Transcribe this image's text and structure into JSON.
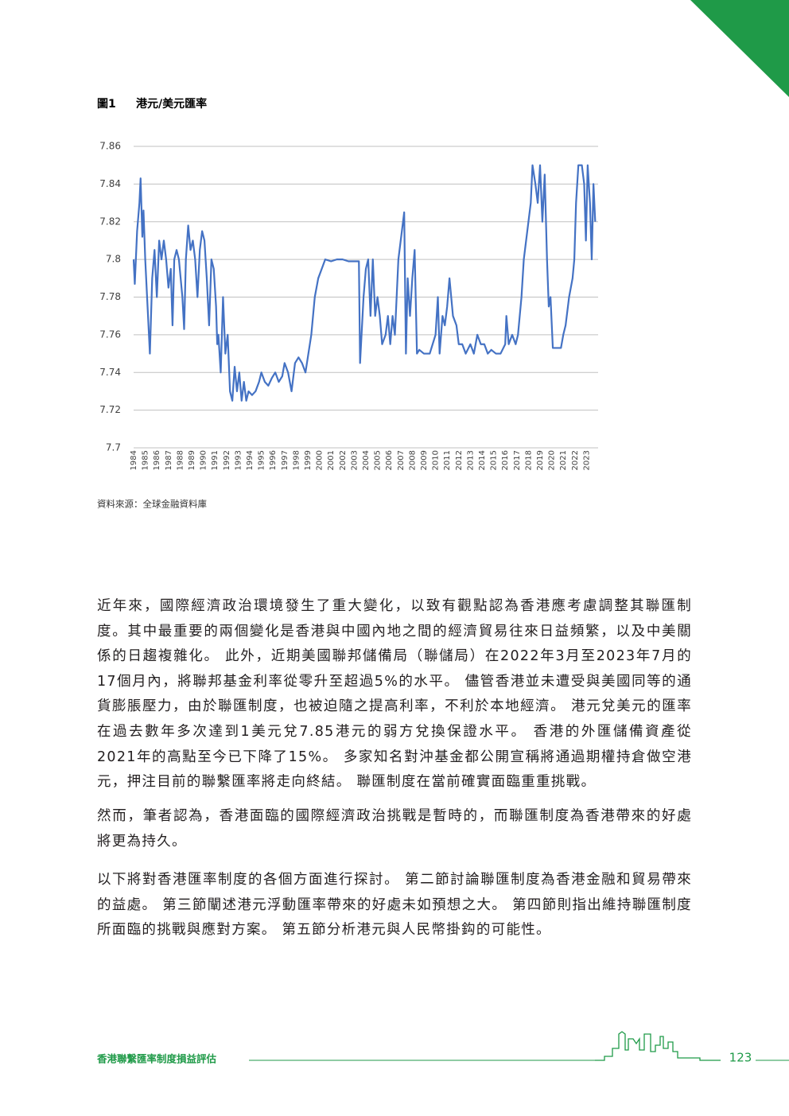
{
  "chart_data": {
    "type": "line",
    "figure_label": "圖1",
    "title": "港元/美元匯率",
    "source": "資料來源：全球金融資料庫",
    "color": "#4472c4",
    "grid": true,
    "x": [
      1984.0,
      1984.1,
      1984.3,
      1984.5,
      1984.6,
      1984.75,
      1984.85,
      1985.0,
      1985.2,
      1985.4,
      1985.6,
      1985.8,
      1986.0,
      1986.2,
      1986.4,
      1986.6,
      1986.8,
      1987.0,
      1987.2,
      1987.35,
      1987.5,
      1987.7,
      1987.9,
      1988.2,
      1988.35,
      1988.5,
      1988.7,
      1988.9,
      1989.1,
      1989.3,
      1989.5,
      1989.7,
      1989.9,
      1990.1,
      1990.3,
      1990.5,
      1990.7,
      1990.9,
      1991.1,
      1991.2,
      1991.3,
      1991.5,
      1991.7,
      1991.9,
      1992.1,
      1992.3,
      1992.5,
      1992.7,
      1992.9,
      1993.1,
      1993.3,
      1993.5,
      1993.7,
      1993.9,
      1994.2,
      1994.5,
      1994.8,
      1995.0,
      1995.3,
      1995.6,
      1995.9,
      1996.2,
      1996.5,
      1996.8,
      1997.0,
      1997.3,
      1997.6,
      1997.9,
      1998.2,
      1998.5,
      1998.8,
      1999.0,
      1999.3,
      1999.6,
      1999.9,
      2000.2,
      2000.5,
      2001.0,
      2001.5,
      2002.0,
      2002.5,
      2003.0,
      2003.4,
      2003.5,
      2003.8,
      2004.0,
      2004.2,
      2004.4,
      2004.6,
      2004.8,
      2005.0,
      2005.2,
      2005.4,
      2005.7,
      2005.9,
      2006.1,
      2006.3,
      2006.5,
      2006.8,
      2007.0,
      2007.2,
      2007.3,
      2007.45,
      2007.6,
      2007.8,
      2008.0,
      2008.2,
      2008.4,
      2008.6,
      2009.0,
      2009.5,
      2010.0,
      2010.2,
      2010.35,
      2010.6,
      2010.8,
      2011.0,
      2011.2,
      2011.5,
      2011.8,
      2012.0,
      2012.3,
      2012.6,
      2013.0,
      2013.3,
      2013.6,
      2013.9,
      2014.2,
      2014.5,
      2014.8,
      2015.2,
      2015.6,
      2016.0,
      2016.1,
      2016.3,
      2016.6,
      2016.9,
      2017.1,
      2017.4,
      2017.6,
      2017.8,
      2018.0,
      2018.2,
      2018.35,
      2018.6,
      2018.8,
      2019.0,
      2019.2,
      2019.4,
      2019.6,
      2019.75,
      2019.9,
      2020.1,
      2020.5,
      2020.8,
      2021.0,
      2021.2,
      2021.5,
      2021.8,
      2021.95,
      2022.1,
      2022.3,
      2022.6,
      2022.8,
      2022.95,
      2023.1,
      2023.3,
      2023.45,
      2023.6,
      2023.75
    ],
    "values": [
      7.8,
      7.787,
      7.815,
      7.83,
      7.843,
      7.812,
      7.826,
      7.8,
      7.775,
      7.75,
      7.79,
      7.805,
      7.78,
      7.81,
      7.8,
      7.81,
      7.8,
      7.785,
      7.795,
      7.765,
      7.8,
      7.805,
      7.8,
      7.78,
      7.763,
      7.8,
      7.818,
      7.805,
      7.81,
      7.8,
      7.78,
      7.805,
      7.815,
      7.81,
      7.79,
      7.765,
      7.8,
      7.795,
      7.775,
      7.755,
      7.76,
      7.74,
      7.78,
      7.75,
      7.76,
      7.73,
      7.725,
      7.743,
      7.73,
      7.74,
      7.725,
      7.735,
      7.725,
      7.73,
      7.728,
      7.73,
      7.735,
      7.74,
      7.735,
      7.733,
      7.737,
      7.74,
      7.735,
      7.738,
      7.745,
      7.74,
      7.73,
      7.745,
      7.748,
      7.745,
      7.74,
      7.748,
      7.76,
      7.78,
      7.79,
      7.795,
      7.8,
      7.799,
      7.8,
      7.8,
      7.799,
      7.799,
      7.799,
      7.745,
      7.78,
      7.795,
      7.8,
      7.77,
      7.8,
      7.77,
      7.78,
      7.77,
      7.755,
      7.76,
      7.77,
      7.755,
      7.77,
      7.76,
      7.8,
      7.81,
      7.82,
      7.825,
      7.75,
      7.79,
      7.77,
      7.79,
      7.805,
      7.75,
      7.752,
      7.75,
      7.75,
      7.76,
      7.78,
      7.75,
      7.77,
      7.765,
      7.775,
      7.79,
      7.77,
      7.765,
      7.755,
      7.755,
      7.75,
      7.755,
      7.75,
      7.76,
      7.755,
      7.755,
      7.75,
      7.752,
      7.75,
      7.75,
      7.755,
      7.77,
      7.755,
      7.76,
      7.755,
      7.76,
      7.78,
      7.8,
      7.81,
      7.82,
      7.83,
      7.85,
      7.84,
      7.83,
      7.85,
      7.82,
      7.845,
      7.8,
      7.775,
      7.78,
      7.753,
      7.753,
      7.753,
      7.76,
      7.765,
      7.78,
      7.79,
      7.8,
      7.83,
      7.85,
      7.85,
      7.84,
      7.81,
      7.85,
      7.83,
      7.8,
      7.84,
      7.82
    ],
    "xlim": [
      1984,
      2024
    ],
    "xticks": [
      1984,
      1985,
      1986,
      1987,
      1988,
      1989,
      1990,
      1991,
      1992,
      1993,
      1994,
      1995,
      1996,
      1997,
      1998,
      1999,
      2000,
      2001,
      2002,
      2003,
      2004,
      2005,
      2006,
      2007,
      2008,
      2009,
      2010,
      2011,
      2012,
      2013,
      2014,
      2015,
      2016,
      2017,
      2018,
      2019,
      2020,
      2021,
      2022,
      2023
    ],
    "ylim": [
      7.7,
      7.86
    ],
    "yticks": [
      7.7,
      7.72,
      7.74,
      7.76,
      7.78,
      7.8,
      7.82,
      7.84,
      7.86
    ]
  },
  "paragraphs": [
    "近年來，國際經濟政治環境發生了重大變化，以致有觀點認為香港應考慮調整其聯匯制度。其中最重要的兩個變化是香港與中國內地之間的經濟貿易往來日益頻繁，以及中美關係的日趨複雜化。 此外，近期美國聯邦儲備局（聯儲局）在2022年3月至2023年7月的17個月內，將聯邦基金利率從零升至超過5%的水平。 儘管香港並未遭受與美國同等的通貨膨脹壓力，由於聯匯制度，也被迫隨之提高利率，不利於本地經濟。 港元兌美元的匯率在過去數年多次達到1美元兌7.85港元的弱方兌換保證水平。 香港的外匯儲備資產從2021年的高點至今已下降了15%。 多家知名對沖基金都公開宣稱將通過期權持倉做空港元，押注目前的聯繫匯率將走向終結。 聯匯制度在當前確實面臨重重挑戰。",
    "然而，筆者認為，香港面臨的國際經濟政治挑戰是暫時的，而聯匯制度為香港帶來的好處將更為持久。",
    "以下將對香港匯率制度的各個方面進行探討。 第二節討論聯匯制度為香港金融和貿易帶來的益處。 第三節闡述港元浮動匯率帶來的好處未如預想之大。 第四節則指出維持聯匯制度所面臨的挑戰與應對方案。 第五節分析港元與人民幣掛鈎的可能性。"
  ],
  "footer": {
    "title": "香港聯繫匯率制度損益評估",
    "page_number": "123"
  }
}
